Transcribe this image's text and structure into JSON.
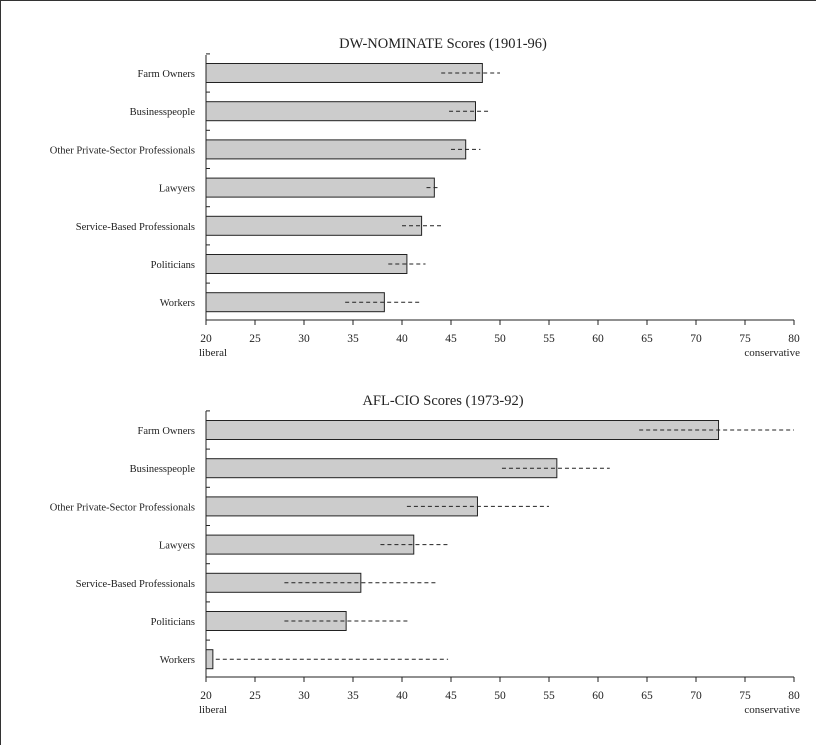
{
  "chart_data": [
    {
      "type": "bar",
      "orientation": "horizontal",
      "title": "DW-NOMINATE Scores (1901-96)",
      "categories": [
        "Farm Owners",
        "Businesspeople",
        "Other Private-Sector Professionals",
        "Lawyers",
        "Service-Based Professionals",
        "Politicians",
        "Workers"
      ],
      "values": [
        48.2,
        47.5,
        46.5,
        43.3,
        42.0,
        40.5,
        38.2
      ],
      "ci_low": [
        44.0,
        44.8,
        45.0,
        42.5,
        40.0,
        38.6,
        34.2
      ],
      "ci_high": [
        50.0,
        48.8,
        48.0,
        43.9,
        44.0,
        42.4,
        41.8
      ],
      "xlim": [
        20,
        80
      ],
      "xticks": [
        20,
        25,
        30,
        35,
        40,
        45,
        50,
        55,
        60,
        65,
        70,
        75,
        80
      ],
      "xlabel_left": "liberal",
      "xlabel_right": "conservative",
      "grid": false,
      "legend": "none"
    },
    {
      "type": "bar",
      "orientation": "horizontal",
      "title": "AFL-CIO Scores (1973-92)",
      "categories": [
        "Farm Owners",
        "Businesspeople",
        "Other Private-Sector Professionals",
        "Lawyers",
        "Service-Based Professionals",
        "Politicians",
        "Workers"
      ],
      "values": [
        72.3,
        55.8,
        47.7,
        41.2,
        35.8,
        34.3,
        20.7
      ],
      "ci_low": [
        64.2,
        50.2,
        40.5,
        37.8,
        28.0,
        28.0,
        21.0
      ],
      "ci_high": [
        80.0,
        61.2,
        55.0,
        44.7,
        43.5,
        40.6,
        44.7
      ],
      "xlim": [
        20,
        80
      ],
      "xticks": [
        20,
        25,
        30,
        35,
        40,
        45,
        50,
        55,
        60,
        65,
        70,
        75,
        80
      ],
      "xlabel_left": "liberal",
      "xlabel_right": "conservative",
      "grid": false,
      "legend": "none"
    }
  ]
}
